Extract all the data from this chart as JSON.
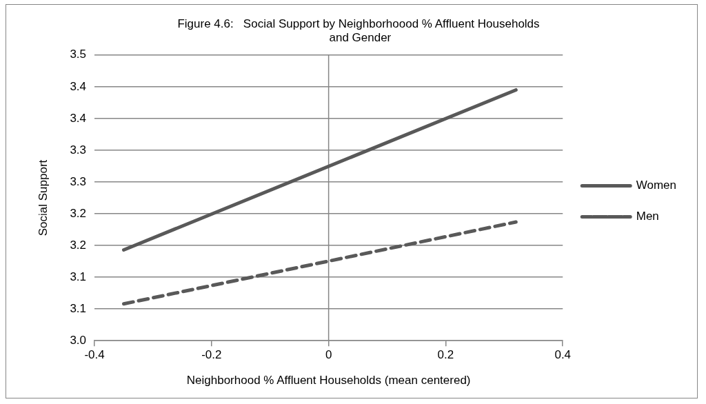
{
  "chart_data": {
    "type": "line",
    "title": "Figure 4.6:   Social Support by Neighborhoood % Affluent Households\n and Gender",
    "xlabel": "Neighborhood % Affluent Households (mean centered)",
    "ylabel": "Social Support",
    "x": [
      -0.35,
      0.32
    ],
    "series": [
      {
        "name": "Women",
        "color": "#595959",
        "values": [
          3.143,
          3.395
        ],
        "line_style": "solid"
      },
      {
        "name": "Men",
        "color": "#595959",
        "values": [
          3.058,
          3.187
        ],
        "line_style": "dashed"
      }
    ],
    "xlim": [
      -0.4,
      0.4
    ],
    "xticks": [
      -0.4,
      -0.2,
      0,
      0.2,
      0.4
    ],
    "ylim": [
      3.0,
      3.45
    ],
    "yticks": [
      {
        "value": 3.0,
        "label": "3.0"
      },
      {
        "value": 3.05,
        "label": "3.1"
      },
      {
        "value": 3.1,
        "label": "3.1"
      },
      {
        "value": 3.15,
        "label": "3.2"
      },
      {
        "value": 3.2,
        "label": "3.2"
      },
      {
        "value": 3.25,
        "label": "3.3"
      },
      {
        "value": 3.3,
        "label": "3.3"
      },
      {
        "value": 3.35,
        "label": "3.4"
      },
      {
        "value": 3.4,
        "label": "3.4"
      },
      {
        "value": 3.45,
        "label": "3.5"
      }
    ],
    "ref_lines": [
      {
        "axis": "x",
        "value": 0,
        "color": "#868686"
      }
    ],
    "grid": "y",
    "legend": "right",
    "marker": "none"
  }
}
